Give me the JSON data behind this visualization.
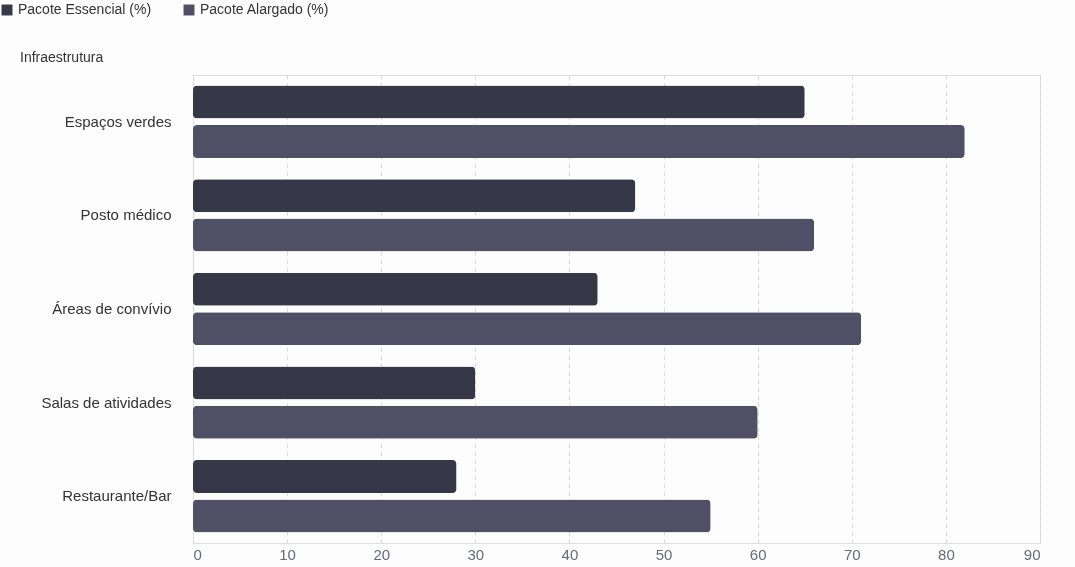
{
  "chart_data": {
    "type": "bar",
    "orientation": "horizontal",
    "ylabel": "Infraestrutura",
    "categories": [
      "Espaços verdes",
      "Posto médico",
      "Áreas de convívio",
      "Salas de atividades",
      "Restaurante/Bar"
    ],
    "series": [
      {
        "name": "Pacote Essencial (%)",
        "color": "#363848",
        "values": [
          65,
          47,
          43,
          30,
          28
        ]
      },
      {
        "name": "Pacote Alargado (%)",
        "color": "#4f5066",
        "values": [
          82,
          66,
          71,
          60,
          55
        ]
      }
    ],
    "xlim": [
      0,
      90
    ],
    "xticks": [
      0,
      10,
      20,
      30,
      40,
      50,
      60,
      70,
      80,
      90
    ],
    "grid": "x",
    "legend": "top left"
  }
}
